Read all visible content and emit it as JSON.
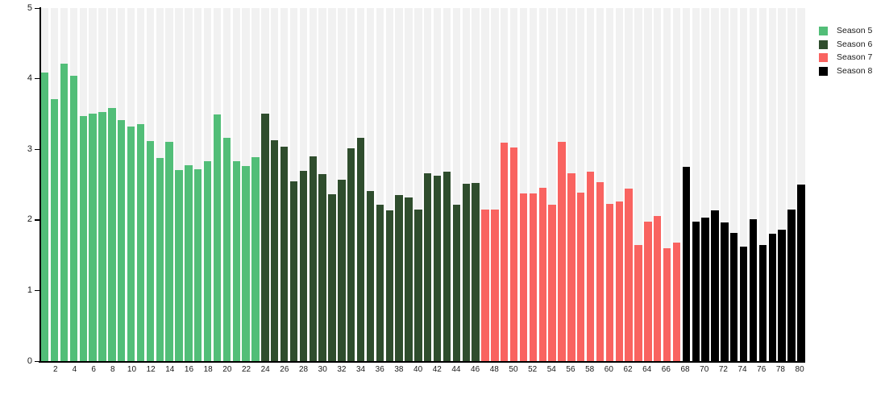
{
  "chart_data": {
    "type": "bar",
    "title": "",
    "xlabel": "",
    "ylabel": "",
    "ylim": [
      0,
      5
    ],
    "yticks": [
      0,
      1,
      2,
      3,
      4,
      5
    ],
    "xticks": [
      2,
      4,
      6,
      8,
      10,
      12,
      14,
      16,
      18,
      20,
      22,
      24,
      26,
      28,
      30,
      32,
      34,
      36,
      38,
      40,
      42,
      44,
      46,
      48,
      50,
      52,
      54,
      56,
      58,
      60,
      62,
      64,
      66,
      68,
      70,
      72,
      74,
      76,
      78,
      80
    ],
    "x_is_episode_number": true,
    "grid": false,
    "background_stripe_color": "#f1f1f1",
    "legend_position": "top-right",
    "series": [
      {
        "name": "Season 5",
        "color": "#52be78",
        "start_episode": 1,
        "values": [
          4.09,
          3.71,
          4.21,
          4.04,
          3.47,
          3.51,
          3.53,
          3.59,
          3.41,
          3.32,
          3.36,
          3.12,
          2.88,
          3.1,
          2.7,
          2.77,
          2.72,
          2.83,
          3.49,
          3.16,
          2.83,
          2.76,
          2.89
        ]
      },
      {
        "name": "Season 6",
        "color": "#2f4d2d",
        "start_episode": 24,
        "values": [
          3.5,
          3.13,
          3.04,
          2.55,
          2.69,
          2.9,
          2.65,
          2.36,
          2.57,
          3.01,
          3.16,
          2.41,
          2.21,
          2.13,
          2.35,
          2.32,
          2.15,
          2.66,
          2.63,
          2.68,
          2.22,
          2.51,
          2.52
        ]
      },
      {
        "name": "Season 7",
        "color": "#f96360",
        "start_episode": 47,
        "values": [
          2.15,
          2.15,
          3.09,
          3.02,
          2.38,
          2.38,
          2.46,
          2.22,
          3.1,
          2.66,
          2.39,
          2.68,
          2.54,
          2.23,
          2.26,
          2.44,
          1.64,
          1.97,
          2.05,
          1.6,
          1.68
        ]
      },
      {
        "name": "Season 8",
        "color": "#000000",
        "start_episode": 68,
        "values": [
          2.75,
          1.97,
          2.03,
          2.13,
          1.96,
          1.81,
          1.62,
          2.01,
          1.64,
          1.8,
          1.86,
          2.15,
          2.5
        ]
      }
    ]
  },
  "legend": {
    "items": [
      {
        "label": "Season 5",
        "color": "#52be78"
      },
      {
        "label": "Season 6",
        "color": "#2f4d2d"
      },
      {
        "label": "Season 7",
        "color": "#f96360"
      },
      {
        "label": "Season 8",
        "color": "#000000"
      }
    ]
  }
}
